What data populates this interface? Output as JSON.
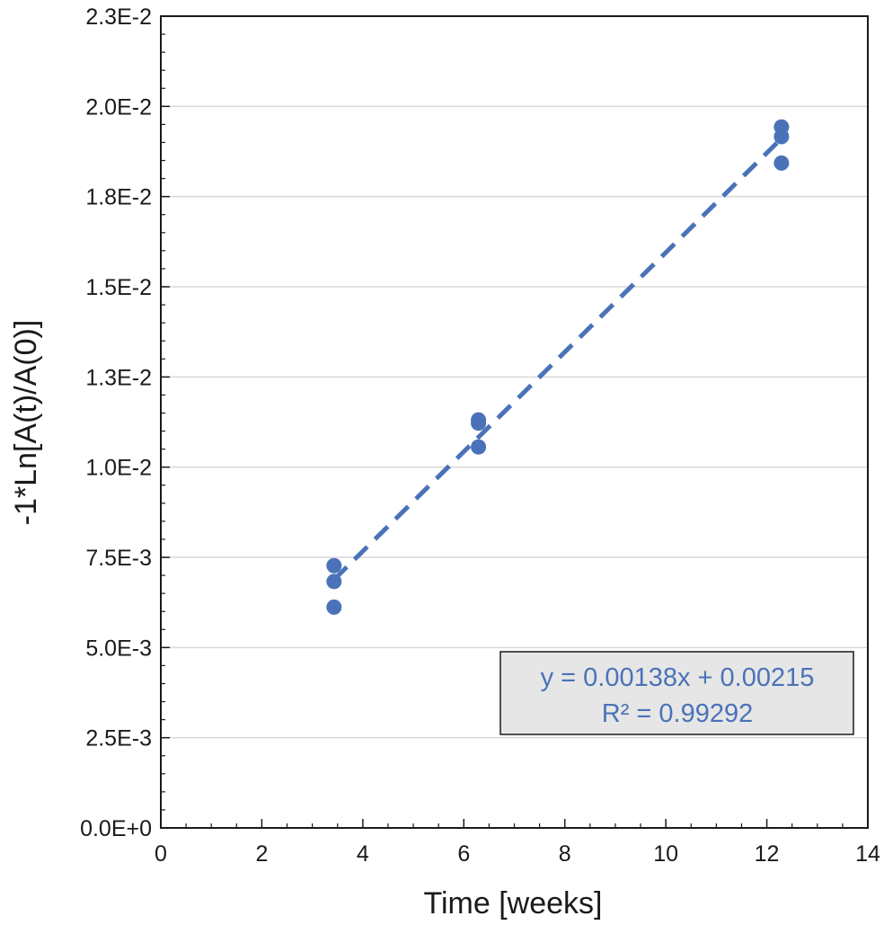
{
  "chart_data": {
    "type": "scatter",
    "xlabel": "Time [weeks]",
    "ylabel": "-1*Ln[A(t)/A(0)]",
    "xlim": [
      0,
      14
    ],
    "ylim": [
      0,
      0.0225
    ],
    "x_ticks": [
      0,
      2,
      4,
      6,
      8,
      10,
      12,
      14
    ],
    "x_tick_labels": [
      "0",
      "2",
      "4",
      "6",
      "8",
      "10",
      "12",
      "14"
    ],
    "y_ticks": [
      0,
      0.0025,
      0.005,
      0.0075,
      0.01,
      0.0125,
      0.015,
      0.0175,
      0.02,
      0.0225
    ],
    "y_tick_labels": [
      "0.0E+0",
      "2.5E-3",
      "5.0E-3",
      "7.5E-3",
      "1.0E-2",
      "1.3E-2",
      "1.5E-2",
      "1.8E-2",
      "2.0E-2",
      "2.3E-2"
    ],
    "grid": "horizontal",
    "series": [
      {
        "points": [
          {
            "x": 3.43,
            "y": 0.00727
          },
          {
            "x": 3.43,
            "y": 0.00683
          },
          {
            "x": 3.43,
            "y": 0.00612
          },
          {
            "x": 6.29,
            "y": 0.01131
          },
          {
            "x": 6.29,
            "y": 0.01122
          },
          {
            "x": 6.29,
            "y": 0.01056
          },
          {
            "x": 12.29,
            "y": 0.01943
          },
          {
            "x": 12.29,
            "y": 0.01916
          },
          {
            "x": 12.29,
            "y": 0.01843
          }
        ],
        "color": "#4a72b8"
      }
    ],
    "trendline": {
      "slope": 0.00138,
      "intercept": 0.00215,
      "x_range": [
        3.43,
        12.29
      ],
      "style": "dashed",
      "color": "#4a72b8",
      "equation_label": "y = 0.00138x + 0.00215",
      "r2_label": "R² = 0.99292"
    }
  }
}
